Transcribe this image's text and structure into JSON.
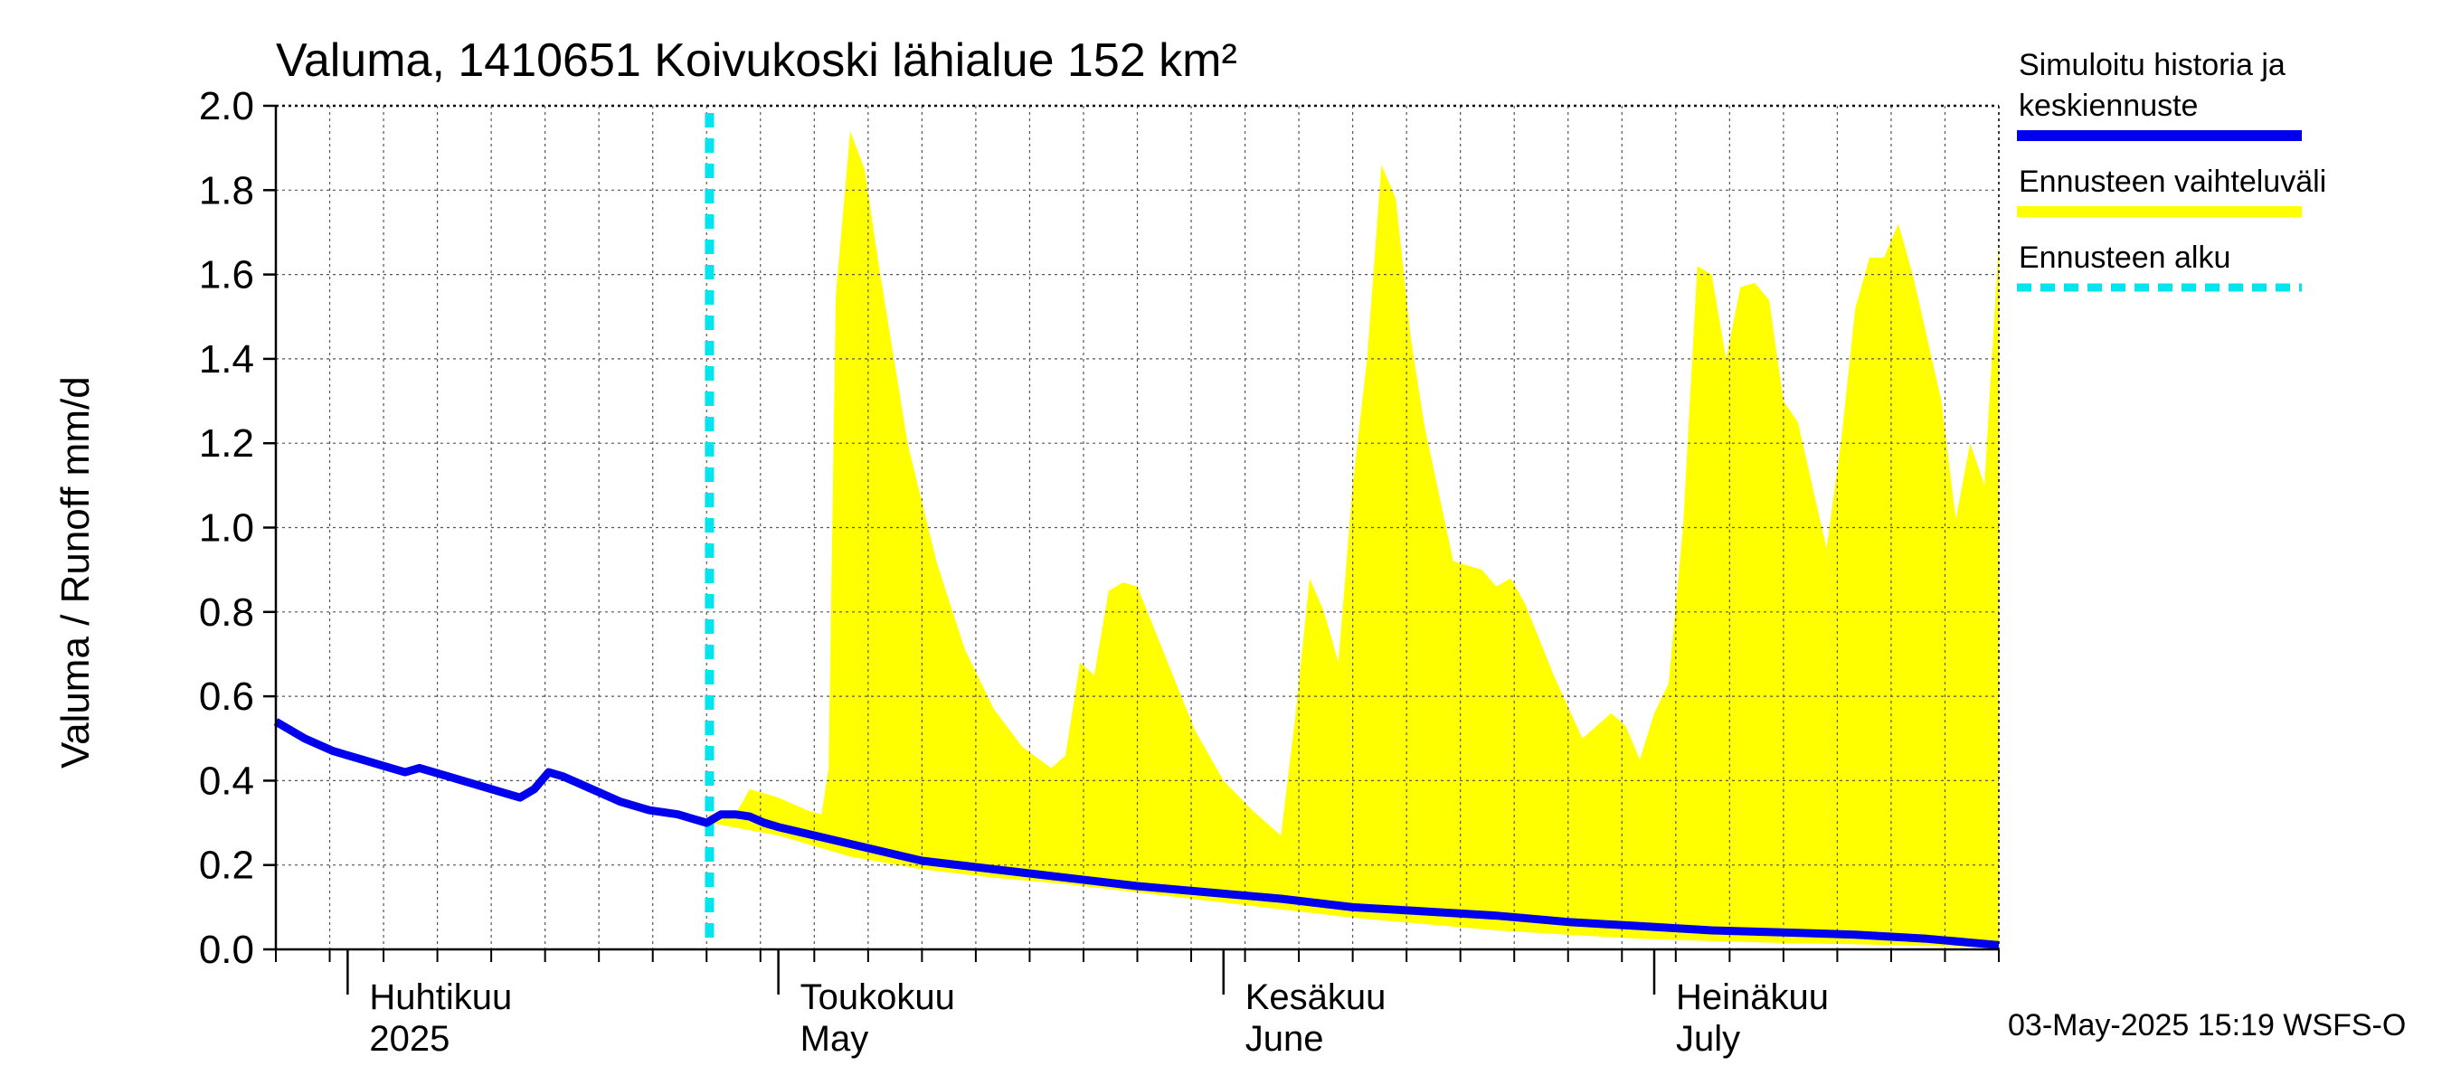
{
  "chart_data": {
    "type": "area",
    "title": "Valuma, 1410651 Koivukoski lähialue 152 km²",
    "ylabel": "Valuma / Runoff    mm/d",
    "ylim": [
      0,
      2.0
    ],
    "yticks": [
      "0.0",
      "0.2",
      "0.4",
      "0.6",
      "0.8",
      "1.0",
      "1.2",
      "1.4",
      "1.6",
      "1.8",
      "2.0"
    ],
    "x_start_day": 0,
    "x_end_day": 120,
    "x_unit": "days since 2025-03-27",
    "month_labels": [
      {
        "day": 5,
        "fi": "Huhtikuu",
        "en": "2025"
      },
      {
        "day": 35,
        "fi": "Toukokuu",
        "en": "May"
      },
      {
        "day": 66,
        "fi": "Kesäkuu",
        "en": "June"
      },
      {
        "day": 96,
        "fi": "Heinäkuu",
        "en": "July"
      }
    ],
    "forecast_start_day": 30.2,
    "legend": [
      {
        "label_lines": [
          "Simuloitu historia ja",
          "keskiennuste"
        ],
        "color": "#0000ee",
        "style": "solid"
      },
      {
        "label_lines": [
          "Ennusteen vaihteluväli"
        ],
        "color": "#ffff00",
        "style": "solid"
      },
      {
        "label_lines": [
          "Ennusteen alku"
        ],
        "color": "#00e5ee",
        "style": "dashed"
      }
    ],
    "timestamp": "03-May-2025 15:19 WSFS-O",
    "series": [
      {
        "name": "Simuloitu historia ja keskiennuste",
        "color": "#0000ee",
        "points": [
          [
            0,
            0.54
          ],
          [
            2,
            0.5
          ],
          [
            4,
            0.47
          ],
          [
            6,
            0.45
          ],
          [
            8,
            0.43
          ],
          [
            9,
            0.42
          ],
          [
            10,
            0.43
          ],
          [
            12,
            0.41
          ],
          [
            14,
            0.39
          ],
          [
            16,
            0.37
          ],
          [
            17,
            0.36
          ],
          [
            18,
            0.38
          ],
          [
            19,
            0.42
          ],
          [
            20,
            0.41
          ],
          [
            22,
            0.38
          ],
          [
            24,
            0.35
          ],
          [
            26,
            0.33
          ],
          [
            28,
            0.32
          ],
          [
            29,
            0.31
          ],
          [
            30,
            0.3
          ],
          [
            31,
            0.32
          ],
          [
            32,
            0.32
          ],
          [
            33,
            0.315
          ],
          [
            34,
            0.3
          ],
          [
            35,
            0.29
          ],
          [
            40,
            0.25
          ],
          [
            45,
            0.21
          ],
          [
            50,
            0.19
          ],
          [
            55,
            0.17
          ],
          [
            60,
            0.15
          ],
          [
            65,
            0.135
          ],
          [
            70,
            0.12
          ],
          [
            75,
            0.1
          ],
          [
            80,
            0.09
          ],
          [
            85,
            0.08
          ],
          [
            90,
            0.065
          ],
          [
            95,
            0.055
          ],
          [
            100,
            0.045
          ],
          [
            105,
            0.04
          ],
          [
            110,
            0.035
          ],
          [
            115,
            0.025
          ],
          [
            120,
            0.01
          ]
        ]
      },
      {
        "name": "Ennusteen vaihteluväli (yläraja)",
        "color": "#ffff00",
        "points": [
          [
            30.2,
            0.32
          ],
          [
            32,
            0.32
          ],
          [
            33,
            0.38
          ],
          [
            34,
            0.37
          ],
          [
            35,
            0.36
          ],
          [
            37,
            0.33
          ],
          [
            38,
            0.32
          ],
          [
            38.5,
            0.43
          ],
          [
            39,
            1.55
          ],
          [
            40,
            1.94
          ],
          [
            41,
            1.85
          ],
          [
            42,
            1.62
          ],
          [
            44,
            1.2
          ],
          [
            46,
            0.92
          ],
          [
            48,
            0.71
          ],
          [
            50,
            0.57
          ],
          [
            52,
            0.48
          ],
          [
            54,
            0.43
          ],
          [
            55,
            0.46
          ],
          [
            56,
            0.68
          ],
          [
            57,
            0.65
          ],
          [
            58,
            0.85
          ],
          [
            59,
            0.87
          ],
          [
            60,
            0.86
          ],
          [
            62,
            0.69
          ],
          [
            64,
            0.52
          ],
          [
            66,
            0.4
          ],
          [
            68,
            0.33
          ],
          [
            70,
            0.27
          ],
          [
            71,
            0.55
          ],
          [
            72,
            0.88
          ],
          [
            73,
            0.8
          ],
          [
            74,
            0.68
          ],
          [
            75,
            1.1
          ],
          [
            76,
            1.4
          ],
          [
            77,
            1.86
          ],
          [
            78,
            1.78
          ],
          [
            79,
            1.46
          ],
          [
            80,
            1.24
          ],
          [
            82,
            0.92
          ],
          [
            84,
            0.9
          ],
          [
            85,
            0.86
          ],
          [
            86,
            0.88
          ],
          [
            87,
            0.82
          ],
          [
            89,
            0.65
          ],
          [
            91,
            0.5
          ],
          [
            92,
            0.53
          ],
          [
            93,
            0.56
          ],
          [
            94,
            0.53
          ],
          [
            95,
            0.45
          ],
          [
            96,
            0.56
          ],
          [
            97,
            0.63
          ],
          [
            98,
            1.0
          ],
          [
            99,
            1.62
          ],
          [
            100,
            1.6
          ],
          [
            101,
            1.4
          ],
          [
            102,
            1.57
          ],
          [
            103,
            1.58
          ],
          [
            104,
            1.54
          ],
          [
            105,
            1.3
          ],
          [
            106,
            1.25
          ],
          [
            108,
            0.95
          ],
          [
            109,
            1.2
          ],
          [
            110,
            1.52
          ],
          [
            111,
            1.64
          ],
          [
            112,
            1.64
          ],
          [
            113,
            1.72
          ],
          [
            114,
            1.6
          ],
          [
            116,
            1.3
          ],
          [
            117,
            1.02
          ],
          [
            118,
            1.2
          ],
          [
            119,
            1.1
          ],
          [
            120,
            1.68
          ]
        ]
      },
      {
        "name": "Ennusteen vaihteluväli (alaraja)",
        "color": "#ffff00",
        "points": [
          [
            30.2,
            0.3
          ],
          [
            35,
            0.27
          ],
          [
            40,
            0.22
          ],
          [
            45,
            0.19
          ],
          [
            50,
            0.17
          ],
          [
            55,
            0.155
          ],
          [
            60,
            0.135
          ],
          [
            65,
            0.115
          ],
          [
            70,
            0.095
          ],
          [
            75,
            0.075
          ],
          [
            80,
            0.06
          ],
          [
            85,
            0.045
          ],
          [
            90,
            0.035
          ],
          [
            95,
            0.025
          ],
          [
            100,
            0.02
          ],
          [
            105,
            0.015
          ],
          [
            110,
            0.012
          ],
          [
            115,
            0.008
          ],
          [
            120,
            0.005
          ]
        ]
      }
    ]
  }
}
